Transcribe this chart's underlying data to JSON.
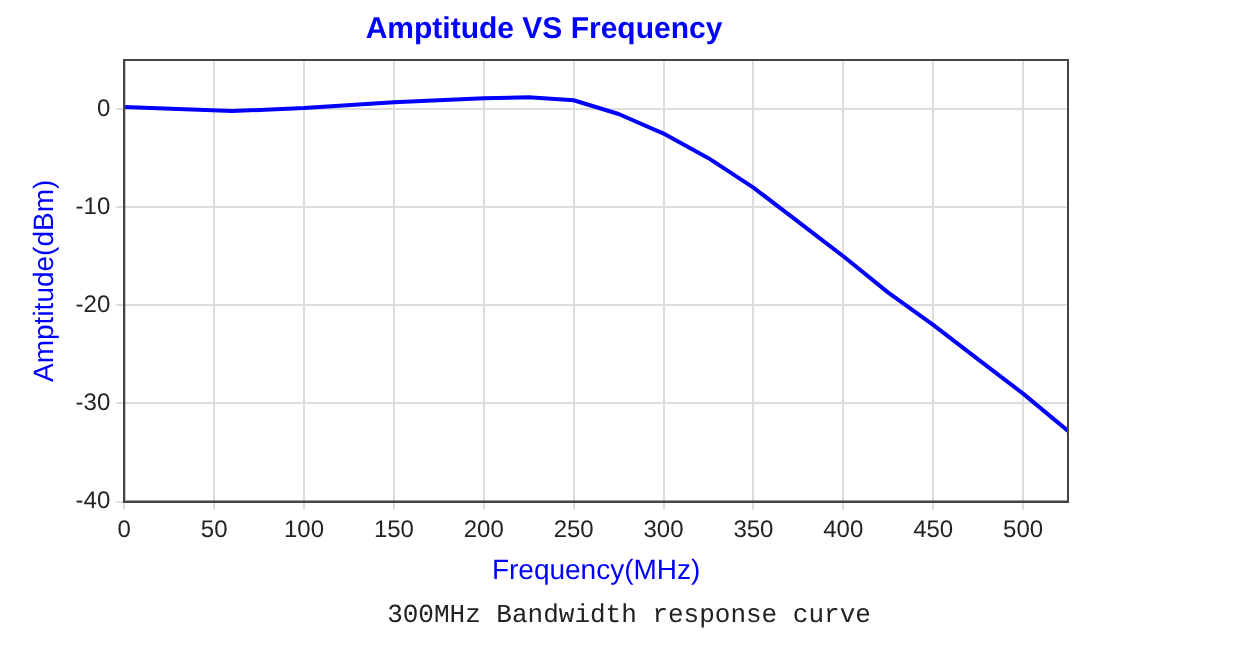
{
  "chart_data": {
    "type": "line",
    "title": "Amptitude VS Frequency",
    "xlabel": "Frequency(MHz)",
    "ylabel": "Amptitude(dBm)",
    "annotations": [
      "300MHz Bandwidth response curve"
    ],
    "x": [
      0,
      30,
      60,
      100,
      150,
      200,
      225,
      250,
      275,
      300,
      325,
      350,
      375,
      400,
      425,
      450,
      475,
      500,
      525
    ],
    "series": [
      {
        "color": "#0000ff",
        "values": [
          0.2,
          0,
          -0.2,
          0.1,
          0.7,
          1.1,
          1.2,
          0.9,
          -0.5,
          -2.5,
          -5,
          -8,
          -11.5,
          -15,
          -18.7,
          -22,
          -25.5,
          -29,
          -32.8
        ]
      }
    ],
    "xlim": [
      0,
      525
    ],
    "xticks": [
      0,
      50,
      100,
      150,
      200,
      250,
      300,
      350,
      400,
      450,
      500
    ],
    "ylim": [
      -40,
      5
    ],
    "yticks": [
      -40,
      -30,
      -20,
      -10,
      0
    ],
    "grid": true,
    "legend": false,
    "marker": "none",
    "line_style": "solid"
  }
}
